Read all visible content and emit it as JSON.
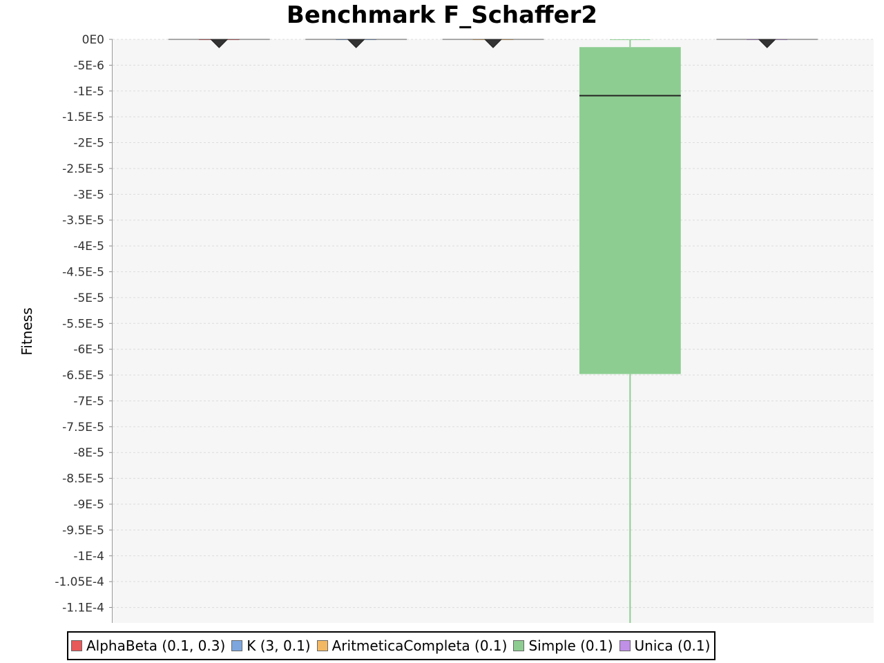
{
  "chart_data": {
    "type": "boxplot",
    "title": "Benchmark F_Schaffer2",
    "xlabel": "",
    "ylabel": "Fitness",
    "ylim": [
      -0.000113,
      0
    ],
    "y_ticks": [
      {
        "value": 0,
        "label": "0E0"
      },
      {
        "value": -5e-06,
        "label": "-5E-6"
      },
      {
        "value": -1e-05,
        "label": "-1E-5"
      },
      {
        "value": -1.5e-05,
        "label": "-1.5E-5"
      },
      {
        "value": -2e-05,
        "label": "-2E-5"
      },
      {
        "value": -2.5e-05,
        "label": "-2.5E-5"
      },
      {
        "value": -3e-05,
        "label": "-3E-5"
      },
      {
        "value": -3.5e-05,
        "label": "-3.5E-5"
      },
      {
        "value": -4e-05,
        "label": "-4E-5"
      },
      {
        "value": -4.5e-05,
        "label": "-4.5E-5"
      },
      {
        "value": -5e-05,
        "label": "-5E-5"
      },
      {
        "value": -5.5e-05,
        "label": "-5.5E-5"
      },
      {
        "value": -6e-05,
        "label": "-6E-5"
      },
      {
        "value": -6.5e-05,
        "label": "-6.5E-5"
      },
      {
        "value": -7e-05,
        "label": "-7E-5"
      },
      {
        "value": -7.5e-05,
        "label": "-7.5E-5"
      },
      {
        "value": -8e-05,
        "label": "-8E-5"
      },
      {
        "value": -8.5e-05,
        "label": "-8.5E-5"
      },
      {
        "value": -9e-05,
        "label": "-9E-5"
      },
      {
        "value": -9.5e-05,
        "label": "-9.5E-5"
      },
      {
        "value": -0.0001,
        "label": "-1E-4"
      },
      {
        "value": -0.000105,
        "label": "-1.05E-4"
      },
      {
        "value": -0.00011,
        "label": "-1.1E-4"
      }
    ],
    "grid": true,
    "legend_position": "bottom",
    "series": [
      {
        "name": "AlphaBeta (0.1, 0.3)",
        "color": "#e8595a",
        "whisker_high": 0,
        "q3": 0,
        "median": 0,
        "q1": 0,
        "whisker_low": 0,
        "mean": 0
      },
      {
        "name": "K (3, 0.1)",
        "color": "#7ea6de",
        "whisker_high": 0,
        "q3": 0,
        "median": 0,
        "q1": 0,
        "whisker_low": 0,
        "mean": 0
      },
      {
        "name": "AritmeticaCompleta (0.1)",
        "color": "#f3b863",
        "whisker_high": 0,
        "q3": 0,
        "median": 0,
        "q1": 0,
        "whisker_low": 0,
        "mean": 0
      },
      {
        "name": "Simple (0.1)",
        "color": "#8dcd91",
        "whisker_high": 0,
        "q3": -1.5e-06,
        "median": -1.09e-05,
        "q1": -6.48e-05,
        "whisker_low": -0.000113
      },
      {
        "name": "Unica (0.1)",
        "color": "#c08fe6",
        "whisker_high": 0,
        "q3": 0,
        "median": 0,
        "q1": 0,
        "whisker_low": 0,
        "mean": 0
      }
    ]
  }
}
